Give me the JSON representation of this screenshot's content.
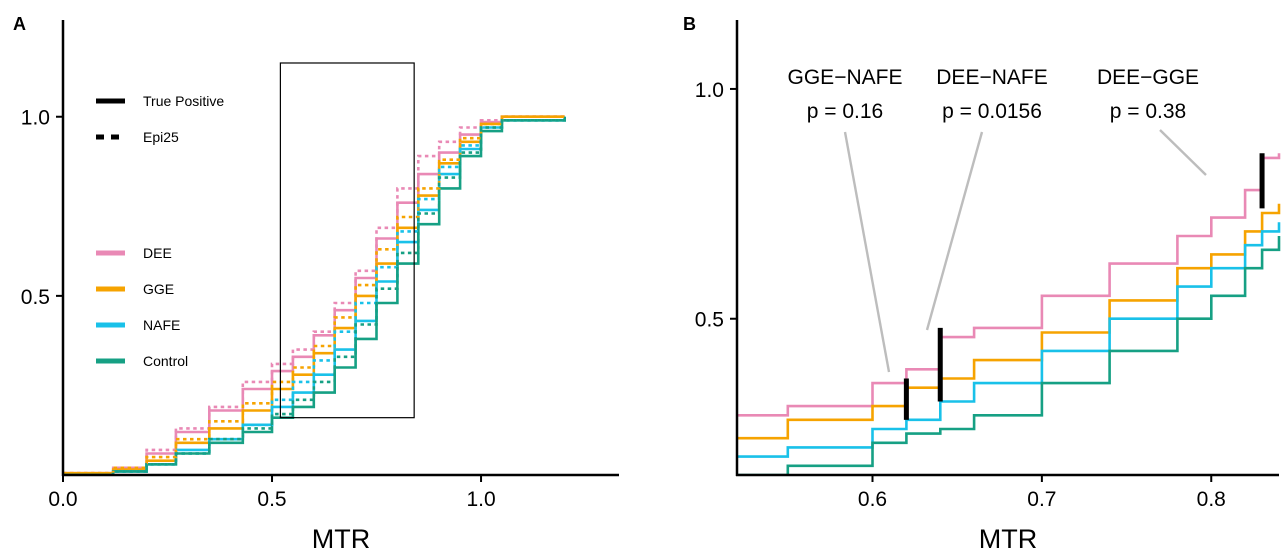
{
  "chart_data": [
    {
      "panel": "A",
      "type": "line",
      "title": "",
      "xlabel": "MTR",
      "ylabel": "",
      "xlim": [
        0.0,
        1.33
      ],
      "ylim": [
        0.0,
        1.27
      ],
      "xticks": [
        "0.0",
        "0.5",
        "1.0"
      ],
      "yticks": [
        "0.5",
        "1.0"
      ],
      "legend": {
        "placement": "left",
        "style_entries": [
          {
            "label": "True Positive",
            "dash": "solid"
          },
          {
            "label": "Epi25",
            "dash": "dotted"
          }
        ],
        "color_entries": [
          {
            "label": "DEE",
            "color": "#E989B5"
          },
          {
            "label": "GGE",
            "color": "#F6A300"
          },
          {
            "label": "NAFE",
            "color": "#19C1E9"
          },
          {
            "label": "Control",
            "color": "#16A084"
          }
        ]
      },
      "zoom_box": {
        "x": [
          0.52,
          0.84
        ],
        "y": [
          0.16,
          1.15
        ]
      },
      "series": [
        {
          "name": "DEE",
          "style": "solid",
          "color": "#E989B5",
          "x": [
            0.0,
            0.12,
            0.2,
            0.27,
            0.35,
            0.43,
            0.5,
            0.55,
            0.6,
            0.65,
            0.7,
            0.75,
            0.8,
            0.85,
            0.9,
            0.95,
            1.0,
            1.05,
            1.2
          ],
          "y": [
            0.005,
            0.02,
            0.06,
            0.12,
            0.18,
            0.24,
            0.29,
            0.33,
            0.39,
            0.46,
            0.55,
            0.66,
            0.76,
            0.84,
            0.9,
            0.95,
            0.985,
            1.0,
            1.0
          ]
        },
        {
          "name": "GGE",
          "style": "solid",
          "color": "#F6A300",
          "x": [
            0.0,
            0.12,
            0.2,
            0.27,
            0.35,
            0.43,
            0.5,
            0.55,
            0.6,
            0.65,
            0.7,
            0.75,
            0.8,
            0.85,
            0.9,
            0.95,
            1.0,
            1.05,
            1.2
          ],
          "y": [
            0.005,
            0.015,
            0.04,
            0.09,
            0.13,
            0.18,
            0.24,
            0.28,
            0.34,
            0.41,
            0.5,
            0.59,
            0.69,
            0.78,
            0.87,
            0.93,
            0.98,
            1.0,
            1.0
          ]
        },
        {
          "name": "NAFE",
          "style": "solid",
          "color": "#19C1E9",
          "x": [
            0.0,
            0.12,
            0.2,
            0.27,
            0.35,
            0.43,
            0.5,
            0.55,
            0.6,
            0.65,
            0.7,
            0.75,
            0.8,
            0.85,
            0.9,
            0.95,
            1.0,
            1.05,
            1.2
          ],
          "y": [
            0.0,
            0.01,
            0.03,
            0.07,
            0.1,
            0.14,
            0.19,
            0.23,
            0.28,
            0.35,
            0.43,
            0.54,
            0.65,
            0.74,
            0.84,
            0.91,
            0.97,
            0.99,
            1.0
          ]
        },
        {
          "name": "Control",
          "style": "solid",
          "color": "#16A084",
          "x": [
            0.0,
            0.12,
            0.2,
            0.27,
            0.35,
            0.43,
            0.5,
            0.55,
            0.6,
            0.65,
            0.7,
            0.75,
            0.8,
            0.85,
            0.9,
            0.95,
            1.0,
            1.05,
            1.2
          ],
          "y": [
            0.0,
            0.01,
            0.03,
            0.06,
            0.09,
            0.12,
            0.16,
            0.19,
            0.23,
            0.3,
            0.38,
            0.48,
            0.59,
            0.7,
            0.8,
            0.89,
            0.96,
            0.99,
            1.0
          ]
        },
        {
          "name": "DEE",
          "style": "dotted",
          "color": "#E989B5",
          "x": [
            0.0,
            0.12,
            0.2,
            0.27,
            0.35,
            0.43,
            0.5,
            0.55,
            0.6,
            0.65,
            0.7,
            0.75,
            0.8,
            0.85,
            0.9,
            0.95,
            1.0,
            1.05,
            1.2
          ],
          "y": [
            0.005,
            0.02,
            0.07,
            0.13,
            0.19,
            0.26,
            0.31,
            0.35,
            0.4,
            0.48,
            0.57,
            0.69,
            0.8,
            0.89,
            0.93,
            0.97,
            0.99,
            1.0,
            1.0
          ]
        },
        {
          "name": "GGE",
          "style": "dotted",
          "color": "#F6A300",
          "x": [
            0.0,
            0.12,
            0.2,
            0.27,
            0.35,
            0.43,
            0.5,
            0.55,
            0.6,
            0.65,
            0.7,
            0.75,
            0.8,
            0.85,
            0.9,
            0.95,
            1.0,
            1.05,
            1.2
          ],
          "y": [
            0.005,
            0.02,
            0.05,
            0.1,
            0.15,
            0.2,
            0.26,
            0.3,
            0.36,
            0.44,
            0.53,
            0.63,
            0.72,
            0.8,
            0.88,
            0.94,
            0.98,
            1.0,
            1.0
          ]
        },
        {
          "name": "NAFE",
          "style": "dotted",
          "color": "#19C1E9",
          "x": [
            0.0,
            0.12,
            0.2,
            0.27,
            0.35,
            0.43,
            0.5,
            0.55,
            0.6,
            0.65,
            0.7,
            0.75,
            0.8,
            0.85,
            0.9,
            0.95,
            1.0,
            1.05,
            1.2
          ],
          "y": [
            0.0,
            0.01,
            0.03,
            0.06,
            0.1,
            0.14,
            0.21,
            0.26,
            0.32,
            0.4,
            0.48,
            0.58,
            0.68,
            0.77,
            0.86,
            0.92,
            0.97,
            0.99,
            1.0
          ]
        },
        {
          "name": "Control",
          "style": "dotted",
          "color": "#16A084",
          "x": [
            0.0,
            0.12,
            0.2,
            0.27,
            0.35,
            0.43,
            0.5,
            0.55,
            0.6,
            0.65,
            0.7,
            0.75,
            0.8,
            0.85,
            0.9,
            0.95,
            1.0,
            1.05,
            1.2
          ],
          "y": [
            0.0,
            0.01,
            0.03,
            0.06,
            0.1,
            0.13,
            0.17,
            0.21,
            0.26,
            0.33,
            0.42,
            0.52,
            0.62,
            0.73,
            0.83,
            0.9,
            0.97,
            0.99,
            1.0
          ]
        }
      ]
    },
    {
      "panel": "B",
      "type": "line",
      "title": "",
      "xlabel": "MTR",
      "ylabel": "",
      "xlim": [
        0.52,
        0.84
      ],
      "ylim": [
        0.16,
        1.15
      ],
      "xticks": [
        "0.6",
        "0.7",
        "0.8"
      ],
      "yticks": [
        "0.5",
        "1.0"
      ],
      "series": [
        {
          "name": "DEE",
          "color": "#E989B5",
          "x": [
            0.52,
            0.55,
            0.6,
            0.62,
            0.64,
            0.66,
            0.7,
            0.74,
            0.78,
            0.8,
            0.82,
            0.83,
            0.84
          ],
          "y": [
            0.29,
            0.31,
            0.36,
            0.39,
            0.46,
            0.48,
            0.55,
            0.62,
            0.68,
            0.72,
            0.78,
            0.85,
            0.86
          ]
        },
        {
          "name": "GGE",
          "color": "#F6A300",
          "x": [
            0.52,
            0.55,
            0.6,
            0.62,
            0.64,
            0.66,
            0.7,
            0.74,
            0.78,
            0.8,
            0.82,
            0.83,
            0.84
          ],
          "y": [
            0.24,
            0.28,
            0.31,
            0.35,
            0.37,
            0.41,
            0.47,
            0.54,
            0.61,
            0.64,
            0.69,
            0.73,
            0.75
          ]
        },
        {
          "name": "NAFE",
          "color": "#19C1E9",
          "x": [
            0.52,
            0.55,
            0.6,
            0.62,
            0.64,
            0.66,
            0.7,
            0.74,
            0.78,
            0.8,
            0.82,
            0.83,
            0.84
          ],
          "y": [
            0.2,
            0.22,
            0.26,
            0.28,
            0.32,
            0.36,
            0.43,
            0.5,
            0.57,
            0.61,
            0.66,
            0.69,
            0.71
          ]
        },
        {
          "name": "Control",
          "color": "#16A084",
          "x": [
            0.52,
            0.55,
            0.6,
            0.62,
            0.64,
            0.66,
            0.7,
            0.74,
            0.78,
            0.8,
            0.82,
            0.83,
            0.84
          ],
          "y": [
            0.16,
            0.18,
            0.23,
            0.25,
            0.26,
            0.29,
            0.36,
            0.43,
            0.5,
            0.55,
            0.61,
            0.65,
            0.68
          ]
        }
      ],
      "annotations": [
        {
          "lines": [
            "GGE−NAFE",
            "p = 0.16"
          ],
          "x": 0.62,
          "y_range": [
            0.28,
            0.37
          ]
        },
        {
          "lines": [
            "DEE−NAFE",
            "p = 0.0156"
          ],
          "x": 0.64,
          "y_range": [
            0.32,
            0.48
          ]
        },
        {
          "lines": [
            "DEE−GGE",
            "p = 0.38"
          ],
          "x": 0.83,
          "y_range": [
            0.74,
            0.86
          ]
        }
      ]
    }
  ]
}
